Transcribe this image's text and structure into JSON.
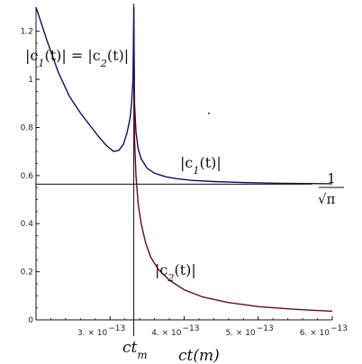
{
  "chart_data": {
    "type": "line",
    "title": "",
    "xlabel": "ct(m)",
    "ylabel": "",
    "xlim": [
      2e-13,
      6e-13
    ],
    "ylim": [
      0,
      1.3
    ],
    "x_ticks": [
      {
        "value": 3e-13,
        "label": "3. × 10",
        "exp": "−13"
      },
      {
        "value": 4e-13,
        "label": "4. × 10",
        "exp": "−13"
      },
      {
        "value": 5e-13,
        "label": "5. × 10",
        "exp": "−13"
      },
      {
        "value": 6e-13,
        "label": "6. × 10",
        "exp": "−13"
      }
    ],
    "y_ticks": [
      {
        "value": 0,
        "label": "0"
      },
      {
        "value": 0.2,
        "label": "0.2"
      },
      {
        "value": 0.4,
        "label": "0.4"
      },
      {
        "value": 0.6,
        "label": "0.6"
      },
      {
        "value": 0.8,
        "label": "0.8"
      },
      {
        "value": 1.0,
        "label": "1"
      },
      {
        "value": 1.2,
        "label": "1.2"
      }
    ],
    "ctm": {
      "x": 3.32e-13,
      "label": "ct",
      "sub": "m"
    },
    "reference_line": {
      "y": 0.5642,
      "label_num": "1",
      "label_den": "π"
    },
    "series": [
      {
        "name": "|c1(t)|",
        "color": "#101060",
        "x": [
          2e-13,
          2.15e-13,
          2.3e-13,
          2.45e-13,
          2.6e-13,
          2.75e-13,
          2.85e-13,
          2.95e-13,
          3.05e-13,
          3.12e-13,
          3.18e-13,
          3.23e-13,
          3.27e-13,
          3.29e-13,
          3.31e-13,
          3.32e-13
        ],
        "y": [
          1.3,
          1.16,
          1.03,
          0.93,
          0.86,
          0.8,
          0.76,
          0.725,
          0.7,
          0.705,
          0.73,
          0.78,
          0.84,
          0.9,
          1.0,
          1.3
        ]
      },
      {
        "name": "",
        "color": "#101060",
        "x": [
          3.32e-13,
          3.33e-13,
          3.35e-13,
          3.38e-13,
          3.42e-13,
          3.5e-13,
          3.6e-13,
          3.75e-13,
          3.9e-13,
          4.1e-13,
          4.4e-13,
          4.8e-13,
          5.3e-13,
          6e-13
        ],
        "y": [
          1.3,
          0.9,
          0.78,
          0.71,
          0.67,
          0.63,
          0.61,
          0.595,
          0.587,
          0.58,
          0.575,
          0.571,
          0.568,
          0.566
        ]
      },
      {
        "name": "|c2(t)|",
        "color": "#6a0a1a",
        "x": [
          3.32e-13,
          3.33e-13,
          3.35e-13,
          3.38e-13,
          3.42e-13,
          3.48e-13,
          3.55e-13,
          3.65e-13,
          3.8e-13,
          4e-13,
          4.25e-13,
          4.6e-13,
          5e-13,
          5.5e-13,
          6e-13
        ],
        "y": [
          1.0,
          0.75,
          0.6,
          0.48,
          0.4,
          0.32,
          0.26,
          0.21,
          0.165,
          0.125,
          0.095,
          0.072,
          0.055,
          0.044,
          0.036
        ]
      }
    ],
    "annotations": [
      {
        "text": "|c1(t)| = |c2(t)|"
      },
      {
        "text": "|c1(t)|"
      },
      {
        "text": "|c2(t)|"
      }
    ]
  }
}
